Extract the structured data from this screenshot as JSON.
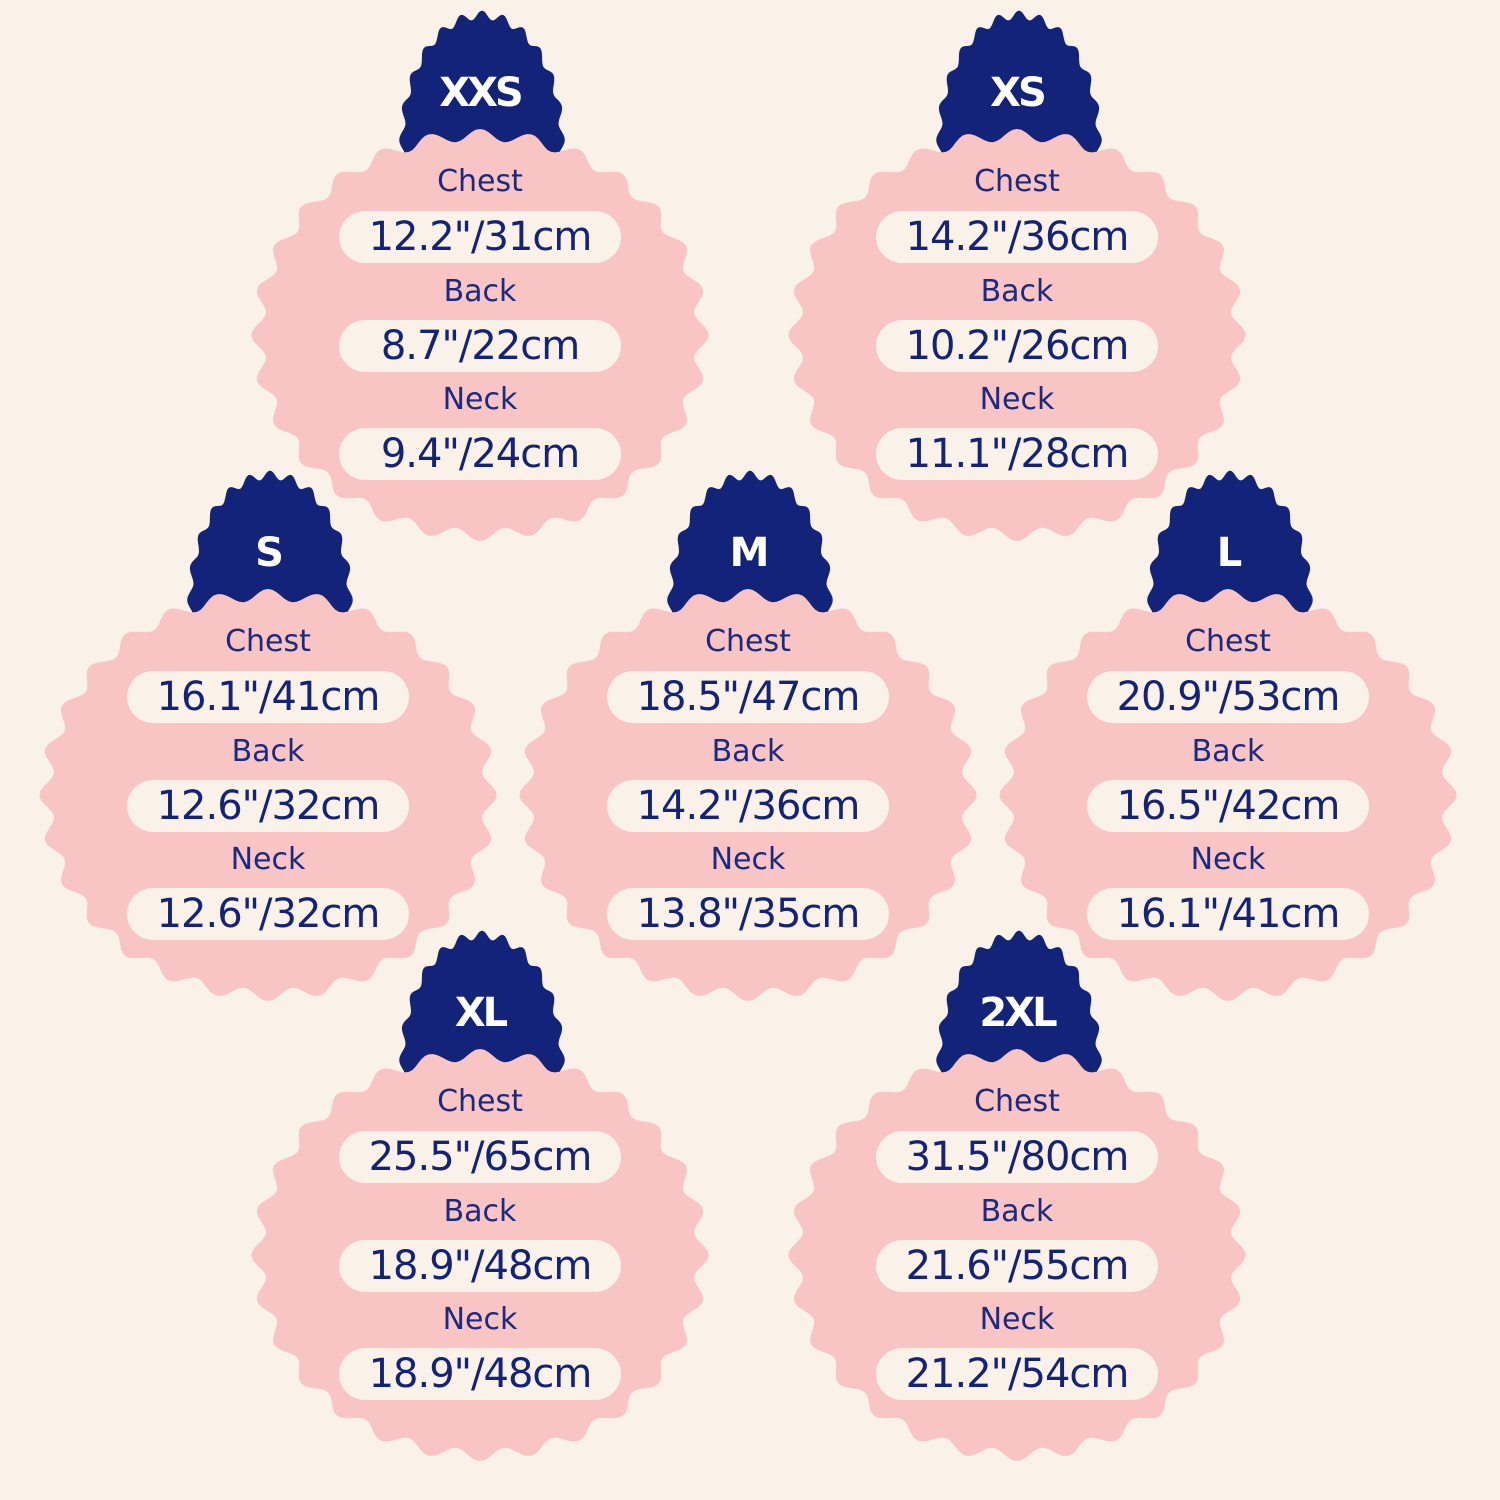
{
  "colors": {
    "background": "#faf1e8",
    "card": "#f9c4c4",
    "badge": "#13237a",
    "text": "#13237a",
    "pill": "#faf1e8"
  },
  "labels": {
    "chest": "Chest",
    "back": "Back",
    "neck": "Neck"
  },
  "sizes": [
    {
      "size": "XXS",
      "chest": "12.2\"/31cm",
      "back": "8.7\"/22cm",
      "neck": "9.4\"/24cm"
    },
    {
      "size": "XS",
      "chest": "14.2\"/36cm",
      "back": "10.2\"/26cm",
      "neck": "11.1\"/28cm"
    },
    {
      "size": "S",
      "chest": "16.1\"/41cm",
      "back": "12.6\"/32cm",
      "neck": "12.6\"/32cm"
    },
    {
      "size": "M",
      "chest": "18.5\"/47cm",
      "back": "14.2\"/36cm",
      "neck": "13.8\"/35cm"
    },
    {
      "size": "L",
      "chest": "20.9\"/53cm",
      "back": "16.5\"/42cm",
      "neck": "16.1\"/41cm"
    },
    {
      "size": "XL",
      "chest": "25.5\"/65cm",
      "back": "18.9\"/48cm",
      "neck": "18.9\"/48cm"
    },
    {
      "size": "2XL",
      "chest": "31.5\"/80cm",
      "back": "21.6\"/55cm",
      "neck": "21.2\"/54cm"
    }
  ]
}
